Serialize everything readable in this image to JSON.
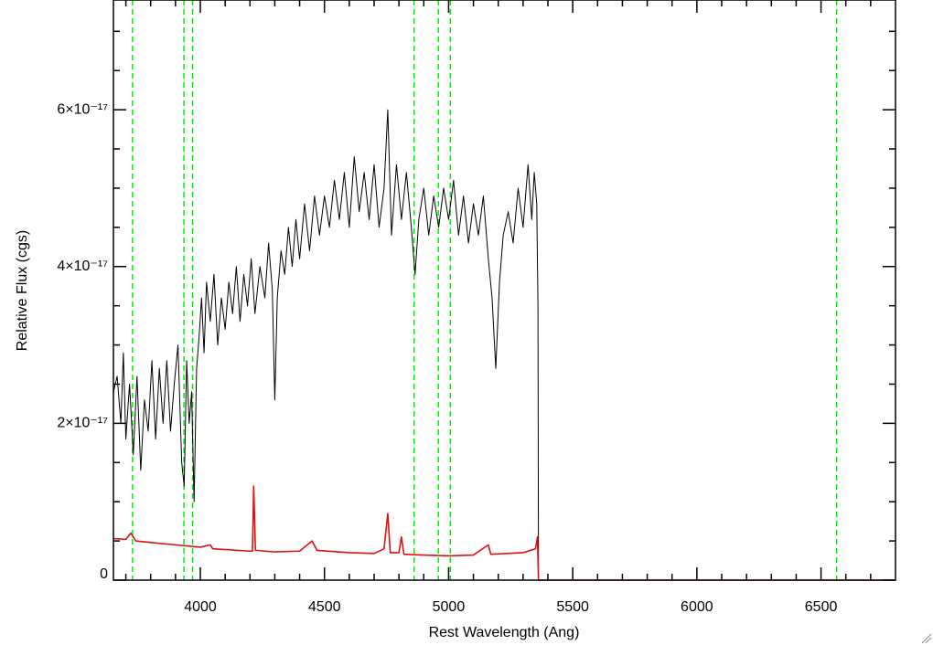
{
  "chart_data": {
    "type": "line",
    "xlabel": "Rest Wavelength (Ang)",
    "ylabel": "Relative Flux (cgs)",
    "xlim": [
      3650,
      6800
    ],
    "ylim": [
      0,
      7.4e-17
    ],
    "xticks": [
      4000,
      4500,
      5000,
      5500,
      6000,
      6500
    ],
    "yticks": [
      {
        "value": 0,
        "label": "0"
      },
      {
        "value": 2e-17,
        "label": "2×10⁻¹⁷"
      },
      {
        "value": 4e-17,
        "label": "4×10⁻¹⁷"
      },
      {
        "value": 6e-17,
        "label": "6×10⁻¹⁷"
      }
    ],
    "xminor_ticks": [
      3700,
      3800,
      3900,
      4100,
      4200,
      4300,
      4400,
      4600,
      4700,
      4800,
      4900,
      5100,
      5200,
      5300,
      5400,
      5600,
      5700,
      5800,
      5900,
      6100,
      6200,
      6300,
      6400,
      6600,
      6700
    ],
    "yminor_ticks": [
      5e-18,
      1e-17,
      1.5e-17,
      2.5e-17,
      3e-17,
      3.5e-17,
      4.5e-17,
      5e-17,
      5.5e-17,
      6.5e-17,
      7e-17
    ],
    "vlines": {
      "color": "#00ee00",
      "x": [
        3727,
        3934,
        3969,
        4861,
        4959,
        5007,
        6563
      ]
    },
    "series": [
      {
        "color": "#000000",
        "x": [
          3650,
          3665,
          3680,
          3690,
          3700,
          3715,
          3730,
          3745,
          3760,
          3775,
          3790,
          3805,
          3820,
          3835,
          3850,
          3865,
          3880,
          3895,
          3910,
          3925,
          3935,
          3945,
          3955,
          3965,
          3975,
          3985,
          3995,
          4005,
          4015,
          4025,
          4040,
          4055,
          4070,
          4085,
          4100,
          4115,
          4130,
          4145,
          4160,
          4175,
          4190,
          4205,
          4220,
          4240,
          4260,
          4275,
          4290,
          4300,
          4310,
          4325,
          4340,
          4355,
          4370,
          4385,
          4400,
          4420,
          4440,
          4460,
          4480,
          4500,
          4520,
          4540,
          4560,
          4580,
          4600,
          4620,
          4640,
          4660,
          4680,
          4700,
          4720,
          4740,
          4755,
          4770,
          4790,
          4810,
          4830,
          4850,
          4865,
          4880,
          4900,
          4920,
          4940,
          4960,
          4980,
          5000,
          5020,
          5040,
          5060,
          5080,
          5100,
          5120,
          5140,
          5160,
          5175,
          5190,
          5205,
          5220,
          5240,
          5260,
          5280,
          5300,
          5320,
          5335,
          5345,
          5355,
          5360,
          5362
        ],
        "values": [
          2.4e-17,
          2.6e-17,
          2e-17,
          2.9e-17,
          1.8e-17,
          2.5e-17,
          1.6e-17,
          2.6e-17,
          1.4e-17,
          2.3e-17,
          1.9e-17,
          2.8e-17,
          1.8e-17,
          2.7e-17,
          2e-17,
          2.8e-17,
          1.9e-17,
          2.5e-17,
          3e-17,
          1.5e-17,
          1.2e-17,
          2.8e-17,
          2e-17,
          2.4e-17,
          1e-17,
          2.7e-17,
          3.1e-17,
          3.6e-17,
          2.9e-17,
          3.8e-17,
          3.3e-17,
          3.9e-17,
          3e-17,
          3.6e-17,
          3.2e-17,
          3.8e-17,
          3.4e-17,
          4e-17,
          3.3e-17,
          3.9e-17,
          3.5e-17,
          4.1e-17,
          3.4e-17,
          4e-17,
          3.6e-17,
          4.3e-17,
          3.7e-17,
          2.3e-17,
          3.6e-17,
          4.2e-17,
          3.9e-17,
          4.5e-17,
          4e-17,
          4.6e-17,
          4.1e-17,
          4.8e-17,
          4.2e-17,
          4.9e-17,
          4.4e-17,
          4.9e-17,
          4.5e-17,
          5.1e-17,
          4.6e-17,
          5.2e-17,
          4.5e-17,
          5.4e-17,
          4.7e-17,
          5.2e-17,
          4.6e-17,
          5.3e-17,
          4.5e-17,
          5e-17,
          6e-17,
          4.4e-17,
          5.3e-17,
          4.6e-17,
          5.2e-17,
          4.5e-17,
          3.9e-17,
          4.6e-17,
          5e-17,
          4.4e-17,
          4.9e-17,
          4.5e-17,
          5e-17,
          4.6e-17,
          5.1e-17,
          4.4e-17,
          4.9e-17,
          4.3e-17,
          4.8e-17,
          4.4e-17,
          4.9e-17,
          4.1e-17,
          3.6e-17,
          2.7e-17,
          3.8e-17,
          4.4e-17,
          4.7e-17,
          4.3e-17,
          5e-17,
          4.5e-17,
          5.3e-17,
          4.6e-17,
          5.2e-17,
          4.8e-17,
          3.5e-17,
          0
        ]
      },
      {
        "color": "#e01010",
        "x": [
          3650,
          3700,
          3720,
          3740,
          3800,
          3900,
          4000,
          4040,
          4050,
          4200,
          4210,
          4215,
          4222,
          4300,
          4400,
          4450,
          4470,
          4600,
          4700,
          4740,
          4755,
          4765,
          4800,
          4810,
          4820,
          4900,
          5000,
          5100,
          5160,
          5170,
          5300,
          5350,
          5358,
          5362,
          6800
        ],
        "values": [
          5.3e-18,
          5.2e-18,
          6e-18,
          5e-18,
          4.8e-18,
          4.5e-18,
          4.2e-18,
          4.5e-18,
          4e-18,
          3.7e-18,
          3.7e-18,
          1.2e-17,
          3.8e-18,
          3.6e-18,
          3.7e-18,
          5e-18,
          3.8e-18,
          3.5e-18,
          3.4e-18,
          4e-18,
          8.5e-18,
          3.5e-18,
          3.5e-18,
          5.5e-18,
          3.3e-18,
          3.2e-18,
          3.1e-18,
          3.2e-18,
          4.5e-18,
          3.3e-18,
          3.5e-18,
          4e-18,
          5.5e-18,
          0,
          0
        ]
      }
    ]
  }
}
